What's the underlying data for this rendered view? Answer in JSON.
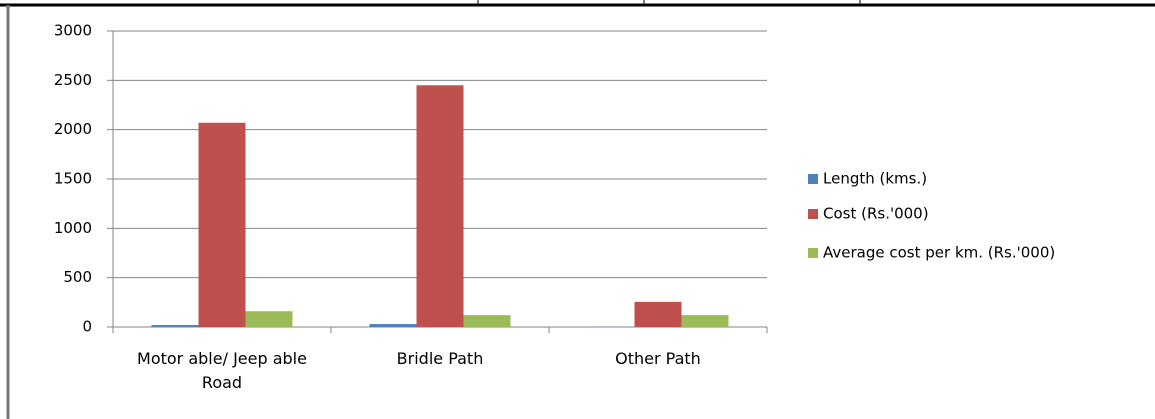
{
  "chart_data": {
    "type": "bar",
    "categories": [
      "Motor able/ Jeep able Road",
      "Bridle Path",
      "Other Path"
    ],
    "series": [
      {
        "name": "Length (kms.)",
        "color": "#4f81bd",
        "values": [
          20,
          30,
          2
        ]
      },
      {
        "name": "Cost (Rs.'000)",
        "color": "#c0504d",
        "values": [
          2070,
          2450,
          255
        ]
      },
      {
        "name": "Average cost per km. (Rs.'000)",
        "color": "#9bbb59",
        "values": [
          160,
          120,
          120
        ]
      }
    ],
    "ylim": [
      0,
      3000
    ],
    "yticks": [
      0,
      500,
      1000,
      1500,
      2000,
      2500,
      3000
    ],
    "grid": true,
    "legend": "right"
  }
}
